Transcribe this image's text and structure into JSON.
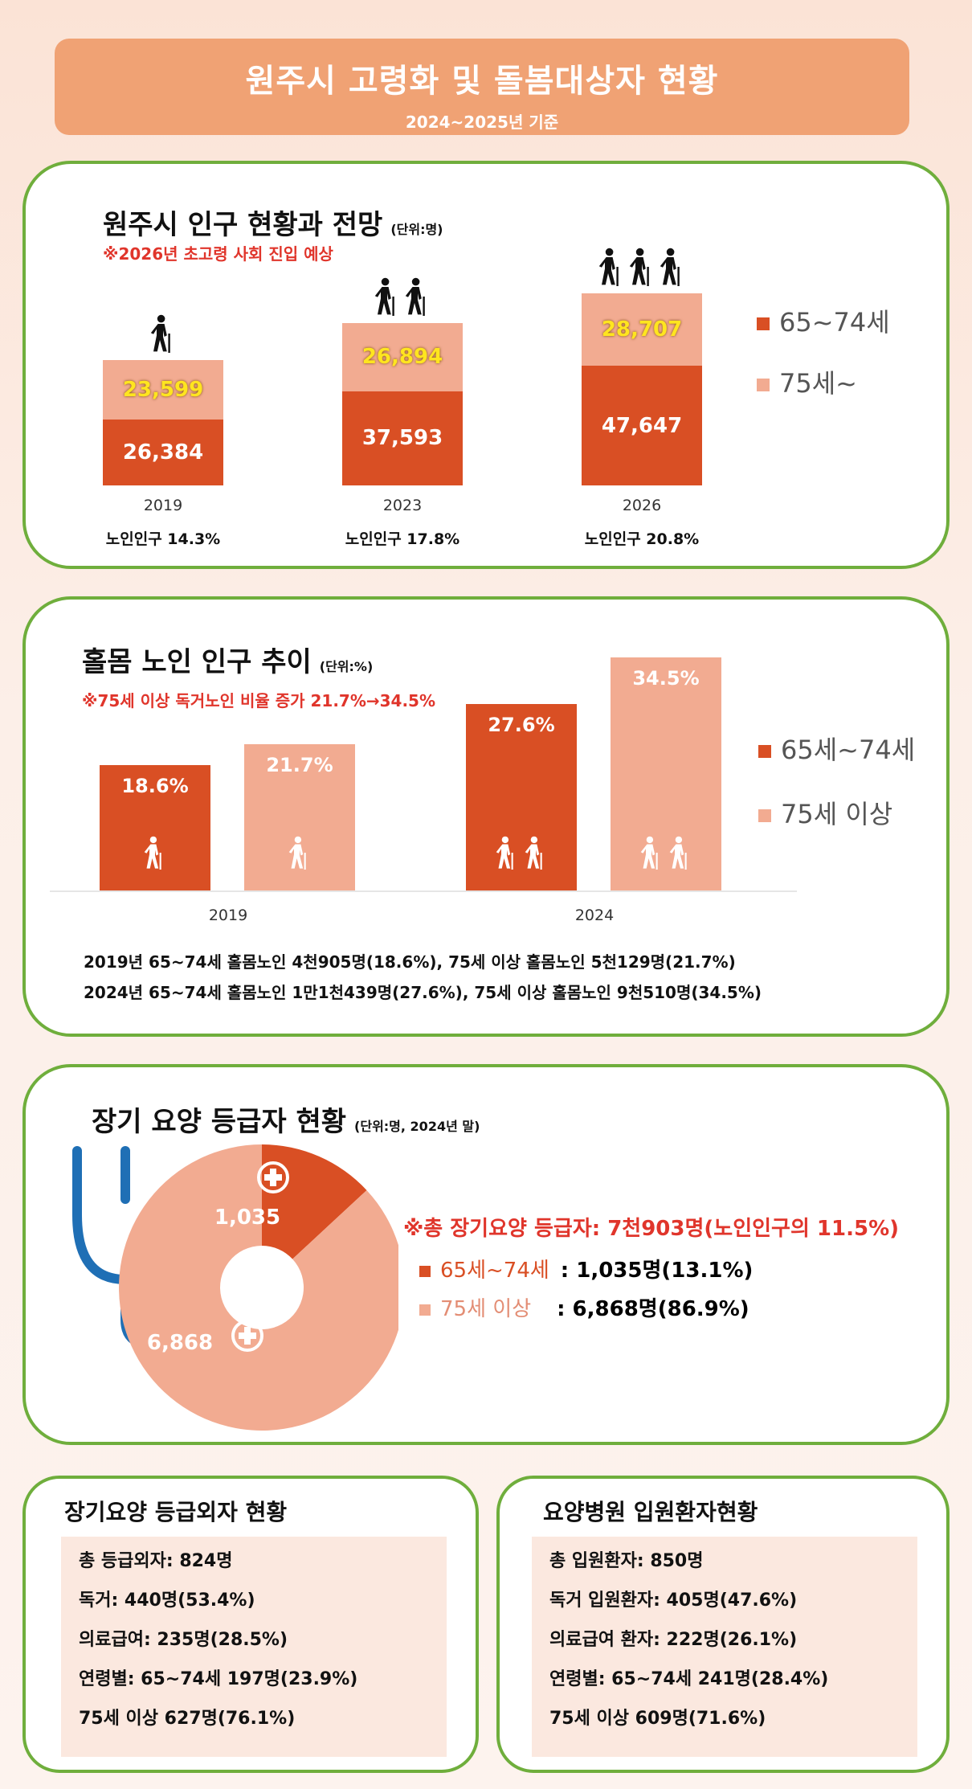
{
  "header": {
    "title": "원주시 고령화 및 돌봄대상자 현황",
    "subtitle": "2024~2025년 기준"
  },
  "colors": {
    "dark": "#d94f24",
    "light": "#f2ab91",
    "border": "#6fae3c",
    "alert": "#e0352b",
    "highlight": "#ffe51f"
  },
  "icons": [
    "elderly-person-icon",
    "stethoscope-icon",
    "plus-cross-icon"
  ],
  "panel1": {
    "title": "원주시 인구 현황과 전망",
    "unit": "(단위:명)",
    "note": "※2026년 초고령 사회 진입 예상",
    "legend": [
      "65~74세",
      "75세~"
    ],
    "bars": [
      {
        "year": "2019",
        "dark": "26,384",
        "light": "23,599",
        "pct": "노인인구 14.3%",
        "figures": 1
      },
      {
        "year": "2023",
        "dark": "37,593",
        "light": "26,894",
        "pct": "노인인구 17.8%",
        "figures": 2
      },
      {
        "year": "2026",
        "dark": "47,647",
        "light": "28,707",
        "pct": "노인인구 20.8%",
        "figures": 3
      }
    ]
  },
  "panel2": {
    "title": "홀몸 노인 인구 추이",
    "unit": "(단위:%)",
    "note": "※75세 이상 독거노인 비율 증가 21.7%→34.5%",
    "legend": [
      "65세~74세",
      "75세 이상"
    ],
    "groups": [
      {
        "year": "2019",
        "a": "18.6%",
        "b": "21.7%"
      },
      {
        "year": "2024",
        "a": "27.6%",
        "b": "34.5%"
      }
    ],
    "lines": [
      "2019년 65~74세 홀몸노인 4천905명(18.6%), 75세 이상 홀몸노인 5천129명(21.7%)",
      "2024년 65~74세 홀몸노인 1만1천439명(27.6%), 75세 이상 홀몸노인 9천510명(34.5%)"
    ]
  },
  "panel3": {
    "title": "장기 요양 등급자 현황",
    "unit": "(단위:명, 2024년 말)",
    "note": "※총 장기요양 등급자: 7천903명(노인인구의 11.5%)",
    "slices": [
      {
        "label": "1,035",
        "value": 1035
      },
      {
        "label": "6,868",
        "value": 6868
      }
    ],
    "legend": [
      {
        "name": "65세~74세",
        "value": ": 1,035명(13.1%)"
      },
      {
        "name": "75세 이상",
        "value": ": 6,868명(86.9%)"
      }
    ]
  },
  "panel4": {
    "title": "장기요양 등급외자 현황",
    "items": [
      "총 등급외자: 824명",
      "독거: 440명(53.4%)",
      "의료급여: 235명(28.5%)",
      "연령별: 65~74세 197명(23.9%)",
      "75세 이상 627명(76.1%)"
    ]
  },
  "panel5": {
    "title": "요양병원 입원환자현황",
    "items": [
      "총 입원환자: 850명",
      "독거 입원환자: 405명(47.6%)",
      "의료급여 환자: 222명(26.1%)",
      "연령별: 65~74세 241명(28.4%)",
      "75세 이상 609명(71.6%)"
    ]
  },
  "chart_data": [
    {
      "type": "bar",
      "title": "원주시 인구 현황과 전망",
      "categories": [
        "2019",
        "2023",
        "2026"
      ],
      "series": [
        {
          "name": "65~74세",
          "values": [
            26384,
            37593,
            47647
          ]
        },
        {
          "name": "75세~",
          "values": [
            23599,
            26894,
            28707
          ]
        }
      ],
      "annotations": [
        "노인인구 14.3%",
        "노인인구 17.8%",
        "노인인구 20.8%"
      ]
    },
    {
      "type": "bar",
      "title": "홀몸 노인 인구 추이",
      "categories": [
        "2019",
        "2024"
      ],
      "series": [
        {
          "name": "65세~74세",
          "values": [
            18.6,
            27.6
          ]
        },
        {
          "name": "75세 이상",
          "values": [
            21.7,
            34.5
          ]
        }
      ]
    },
    {
      "type": "pie",
      "title": "장기 요양 등급자 현황",
      "categories": [
        "65세~74세",
        "75세 이상"
      ],
      "values": [
        1035,
        6868
      ]
    }
  ]
}
